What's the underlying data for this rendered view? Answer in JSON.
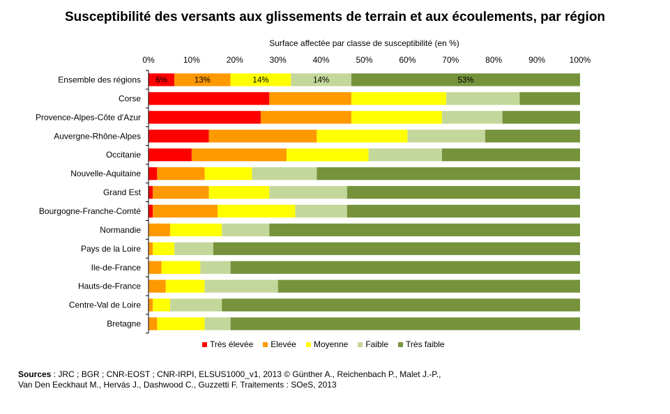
{
  "chart_data": {
    "type": "bar",
    "orientation": "horizontal",
    "stacked": true,
    "title": "Susceptibilité  des versants aux glissements de terrain et aux écoulements, par région",
    "xlabel": "Surface affectée  par classe de susceptibilité (en %)",
    "xlim": [
      0,
      100
    ],
    "xticks": [
      "0%",
      "10%",
      "20%",
      "30%",
      "40%",
      "50%",
      "60%",
      "70%",
      "80%",
      "90%",
      "100%"
    ],
    "categories": [
      "Ensemble des régions",
      "Corse",
      "Provence-Alpes-Côte d'Azur",
      "Auvergne-Rhône-Alpes",
      "Occitanie",
      "Nouvelle-Aquitaine",
      "Grand Est",
      "Bourgogne-Franche-Comté",
      "Normandie",
      "Pays de la Loire",
      "Ile-de-France",
      "Hauts-de-France",
      "Centre-Val de Loire",
      "Bretagne"
    ],
    "series": [
      {
        "name": "Très élevée",
        "color": "#ff0000",
        "values": [
          6,
          28,
          26,
          14,
          10,
          2,
          1,
          1,
          0,
          0,
          0,
          0,
          0,
          0
        ]
      },
      {
        "name": "Elevée",
        "color": "#ff9900",
        "values": [
          13,
          19,
          21,
          25,
          22,
          11,
          13,
          15,
          5,
          1,
          3,
          4,
          1,
          2
        ]
      },
      {
        "name": "Moyenne",
        "color": "#ffff00",
        "values": [
          14,
          22,
          21,
          21,
          19,
          11,
          14,
          18,
          12,
          5,
          9,
          9,
          4,
          11
        ]
      },
      {
        "name": "Faible",
        "color": "#c4d79b",
        "values": [
          14,
          17,
          14,
          18,
          17,
          15,
          18,
          12,
          11,
          9,
          7,
          17,
          12,
          6
        ]
      },
      {
        "name": "Très faible",
        "color": "#76933c",
        "values": [
          53,
          14,
          18,
          22,
          32,
          61,
          54,
          54,
          72,
          85,
          81,
          70,
          83,
          81
        ]
      }
    ],
    "data_labels": [
      {
        "category": "Ensemble des régions",
        "series": "Très élevée",
        "text": "6%"
      },
      {
        "category": "Ensemble des régions",
        "series": "Elevée",
        "text": "13%"
      },
      {
        "category": "Ensemble des régions",
        "series": "Moyenne",
        "text": "14%"
      },
      {
        "category": "Ensemble des régions",
        "series": "Faible",
        "text": "14%"
      },
      {
        "category": "Ensemble des régions",
        "series": "Très faible",
        "text": "53%"
      }
    ],
    "legend_position": "bottom"
  },
  "sources": {
    "label": "Sources",
    "text_line1": " : JRC  ; BGR ; CNR-EOST  ; CNR-IRPI,  ELSUS1000_v1,  2013 © Günther A., Reichenbach  P., Malet J.-P.,",
    "text_line2": "Van Den  Eeckhaut M., Hervás  J., Dashwood  C., Guzzetti F. Traitements  : SOeS, 2013"
  }
}
